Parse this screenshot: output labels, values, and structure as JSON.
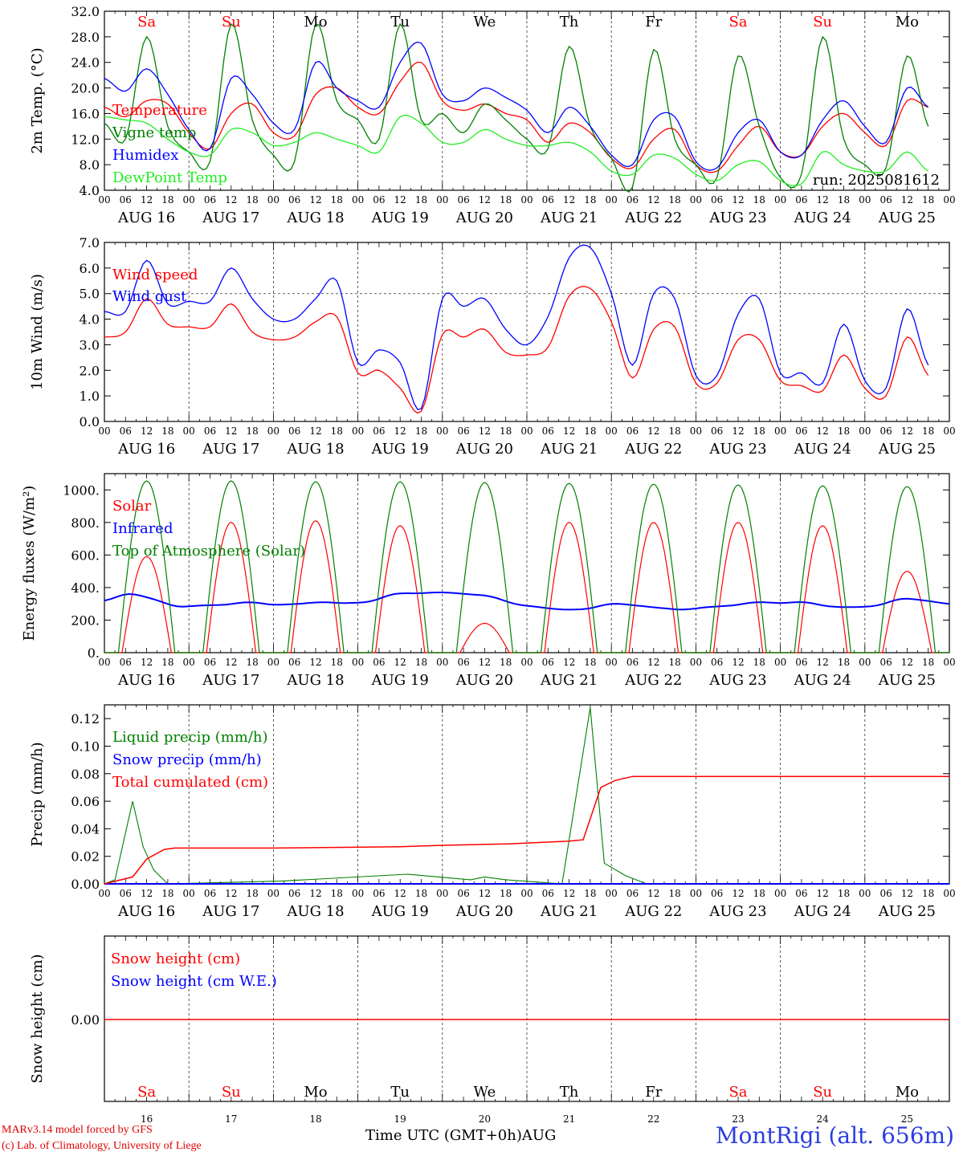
{
  "chart_data": [
    {
      "type": "line",
      "ylabel": "2m Temp. (°C)",
      "ylim": [
        4.0,
        32.0
      ],
      "yticks": [
        "4.0",
        "8.0",
        "12.0",
        "16.0",
        "20.0",
        "24.0",
        "28.0",
        "32.0"
      ],
      "x_hours": [
        0,
        6,
        12,
        18,
        24,
        30,
        36,
        42,
        48,
        54,
        60,
        66,
        72,
        78,
        84,
        90,
        96,
        102,
        108,
        114,
        120,
        126,
        132,
        138,
        144,
        150,
        156,
        162,
        168,
        174,
        180,
        186,
        192,
        198,
        204,
        210,
        216,
        222,
        228,
        234
      ],
      "series": [
        {
          "name": "Temperature",
          "color": "#ff0000",
          "values": [
            17.0,
            15.5,
            18.0,
            17.5,
            13.0,
            10.5,
            16.0,
            17.5,
            13.0,
            12.5,
            19.0,
            20.0,
            17.0,
            16.0,
            21.0,
            24.0,
            18.0,
            16.5,
            17.5,
            16.0,
            15.0,
            11.5,
            14.5,
            13.0,
            9.0,
            7.5,
            12.0,
            13.5,
            8.0,
            7.0,
            11.0,
            14.0,
            10.0,
            9.5,
            14.0,
            16.0,
            13.0,
            11.0,
            18.0,
            17.0
          ]
        },
        {
          "name": "Vigne temp",
          "color": "#008000",
          "values": [
            14.5,
            12.0,
            28.0,
            14.0,
            10.0,
            8.5,
            30.0,
            15.0,
            9.5,
            8.5,
            30.0,
            18.0,
            15.0,
            12.0,
            30.0,
            15.0,
            16.0,
            13.0,
            17.5,
            15.0,
            12.0,
            10.5,
            26.5,
            14.0,
            9.0,
            4.5,
            26.0,
            12.0,
            8.0,
            6.0,
            25.0,
            14.0,
            6.0,
            6.5,
            28.0,
            12.0,
            8.0,
            7.5,
            25.0,
            14.0
          ]
        },
        {
          "name": "Humidex",
          "color": "#0000ff",
          "values": [
            21.5,
            19.5,
            23.0,
            19.0,
            13.5,
            10.5,
            21.5,
            19.0,
            14.5,
            13.5,
            24.0,
            20.0,
            18.0,
            17.0,
            24.0,
            27.0,
            19.0,
            18.0,
            20.0,
            18.5,
            16.5,
            13.0,
            17.0,
            14.0,
            9.5,
            8.0,
            15.0,
            15.5,
            8.5,
            7.5,
            13.0,
            15.0,
            10.0,
            9.5,
            15.0,
            18.0,
            14.0,
            11.5,
            20.0,
            17.0
          ]
        },
        {
          "name": "DewPoint Temp",
          "color": "#22ee22",
          "values": [
            15.5,
            15.0,
            14.5,
            12.0,
            10.0,
            9.5,
            13.5,
            13.0,
            11.0,
            11.5,
            13.0,
            12.0,
            11.0,
            10.0,
            15.5,
            14.5,
            11.5,
            11.5,
            13.5,
            12.0,
            11.0,
            11.0,
            11.5,
            10.0,
            7.0,
            6.5,
            9.5,
            9.0,
            6.5,
            5.5,
            8.0,
            8.5,
            5.5,
            5.0,
            10.0,
            8.0,
            7.0,
            7.0,
            10.0,
            7.0
          ]
        }
      ],
      "annotation": "run: 2025081612"
    },
    {
      "type": "line",
      "ylabel": "10m Wind (m/s)",
      "ylim": [
        0.0,
        7.0
      ],
      "yticks": [
        "0.0",
        "1.0",
        "2.0",
        "3.0",
        "4.0",
        "5.0",
        "6.0",
        "7.0"
      ],
      "ref_line": 5.0,
      "x_hours": [
        0,
        6,
        12,
        18,
        24,
        30,
        36,
        42,
        48,
        54,
        60,
        66,
        72,
        78,
        84,
        90,
        96,
        102,
        108,
        114,
        120,
        126,
        132,
        138,
        144,
        150,
        156,
        162,
        168,
        174,
        180,
        186,
        192,
        198,
        204,
        210,
        216,
        222,
        228,
        234
      ],
      "series": [
        {
          "name": "Wind speed",
          "color": "#ff0000",
          "values": [
            3.3,
            3.5,
            4.8,
            3.8,
            3.7,
            3.7,
            4.6,
            3.5,
            3.2,
            3.3,
            3.9,
            4.1,
            1.9,
            2.0,
            1.3,
            0.4,
            3.4,
            3.3,
            3.6,
            2.7,
            2.6,
            2.9,
            4.9,
            5.2,
            3.9,
            1.7,
            3.6,
            3.7,
            1.5,
            1.5,
            3.2,
            3.2,
            1.6,
            1.4,
            1.2,
            2.6,
            1.3,
            1.0,
            3.3,
            1.8
          ]
        },
        {
          "name": "Wind gust",
          "color": "#0000ff",
          "values": [
            4.3,
            4.3,
            6.3,
            4.6,
            4.7,
            4.7,
            6.0,
            4.8,
            4.0,
            4.0,
            4.8,
            5.5,
            2.3,
            2.8,
            2.3,
            0.5,
            4.8,
            4.5,
            4.8,
            3.6,
            3.0,
            4.1,
            6.4,
            6.8,
            5.0,
            2.2,
            5.0,
            4.8,
            1.8,
            1.8,
            4.2,
            4.8,
            1.9,
            1.9,
            1.5,
            3.8,
            1.6,
            1.3,
            4.4,
            2.2
          ]
        }
      ]
    },
    {
      "type": "line",
      "ylabel": "Energy fluxes (W/m²)",
      "ylim": [
        0,
        1100
      ],
      "yticks": [
        "0.",
        "200.",
        "400.",
        "600.",
        "800.",
        "1000."
      ],
      "series": [
        {
          "name": "Solar",
          "color": "#ff0000",
          "day_peaks": [
            590,
            800,
            810,
            780,
            180,
            800,
            800,
            800,
            780,
            500
          ]
        },
        {
          "name": "Infrared",
          "color": "#0000ff",
          "values": [
            320,
            360,
            330,
            285,
            290,
            295,
            310,
            295,
            300,
            310,
            305,
            315,
            360,
            365,
            370,
            360,
            345,
            300,
            280,
            265,
            270,
            300,
            290,
            275,
            265,
            280,
            290,
            310,
            305,
            310,
            285,
            280,
            290,
            330,
            320,
            300
          ]
        },
        {
          "name": "Top of Atmosphere (Solar)",
          "color": "#008000",
          "day_peaks": [
            1055,
            1055,
            1050,
            1050,
            1045,
            1040,
            1035,
            1030,
            1025,
            1020
          ]
        }
      ]
    },
    {
      "type": "line",
      "ylabel": "Precip (mm/h)",
      "ylim": [
        0.0,
        0.13
      ],
      "yticks": [
        "0.00",
        "0.02",
        "0.04",
        "0.06",
        "0.08",
        "0.10",
        "0.12"
      ],
      "series": [
        {
          "name": "Liquid precip (mm/h)",
          "color": "#008000",
          "events": [
            [
              3,
              0.003
            ],
            [
              8,
              0.06
            ],
            [
              11,
              0.027
            ],
            [
              14,
              0.01
            ],
            [
              18,
              0.0
            ],
            [
              50,
              0.002
            ],
            [
              86,
              0.007
            ],
            [
              104,
              0.003
            ],
            [
              108,
              0.005
            ],
            [
              114,
              0.003
            ],
            [
              130,
              0.0
            ],
            [
              138,
              0.128
            ],
            [
              142,
              0.015
            ],
            [
              148,
              0.006
            ],
            [
              154,
              0.0
            ]
          ]
        },
        {
          "name": "Snow precip (mm/h)",
          "color": "#0000ff",
          "values": []
        },
        {
          "name": "Total cumulated (cm)",
          "color": "#ff0000",
          "values": [
            [
              0,
              0.0
            ],
            [
              8,
              0.005
            ],
            [
              12,
              0.018
            ],
            [
              17,
              0.025
            ],
            [
              20,
              0.026
            ],
            [
              48,
              0.026
            ],
            [
              84,
              0.027
            ],
            [
              96,
              0.028
            ],
            [
              114,
              0.029
            ],
            [
              132,
              0.031
            ],
            [
              136,
              0.032
            ],
            [
              141,
              0.07
            ],
            [
              145,
              0.075
            ],
            [
              150,
              0.078
            ],
            [
              240,
              0.078
            ]
          ]
        }
      ]
    },
    {
      "type": "line",
      "ylabel": "Snow height (cm)",
      "yticks": [
        "0.00"
      ],
      "series": [
        {
          "name": "Snow height (cm)",
          "color": "#ff0000",
          "values": [
            0,
            0
          ]
        },
        {
          "name": "Snow height (cm W.E.)",
          "color": "#0000ff",
          "values": []
        }
      ]
    }
  ],
  "axis": {
    "hour_ticks": [
      "00",
      "06",
      "12",
      "18"
    ],
    "last_tick": "00",
    "dates": [
      "AUG 16",
      "AUG 17",
      "AUG 18",
      "AUG 19",
      "AUG 20",
      "AUG 21",
      "AUG 22",
      "AUG 23",
      "AUG 24",
      "AUG 25"
    ],
    "day_numbers": [
      "16",
      "17",
      "18",
      "19",
      "20",
      "21",
      "22",
      "23",
      "24",
      "25"
    ],
    "weekdays": [
      {
        "label": "Sa",
        "color": "#ff0000"
      },
      {
        "label": "Su",
        "color": "#ff0000"
      },
      {
        "label": "Mo",
        "color": "#000000"
      },
      {
        "label": "Tu",
        "color": "#000000"
      },
      {
        "label": "We",
        "color": "#000000"
      },
      {
        "label": "Th",
        "color": "#000000"
      },
      {
        "label": "Fr",
        "color": "#000000"
      },
      {
        "label": "Sa",
        "color": "#ff0000"
      },
      {
        "label": "Su",
        "color": "#ff0000"
      },
      {
        "label": "Mo",
        "color": "#000000"
      }
    ],
    "xtitle": "Time UTC (GMT+0h)",
    "month": "AUG"
  },
  "footer": {
    "credit_line1": "MARv3.14 model forced by GFS",
    "credit_line2": "(c) Lab. of Climatology, University of Liege",
    "station": "MontRigi (alt. 656m)"
  }
}
